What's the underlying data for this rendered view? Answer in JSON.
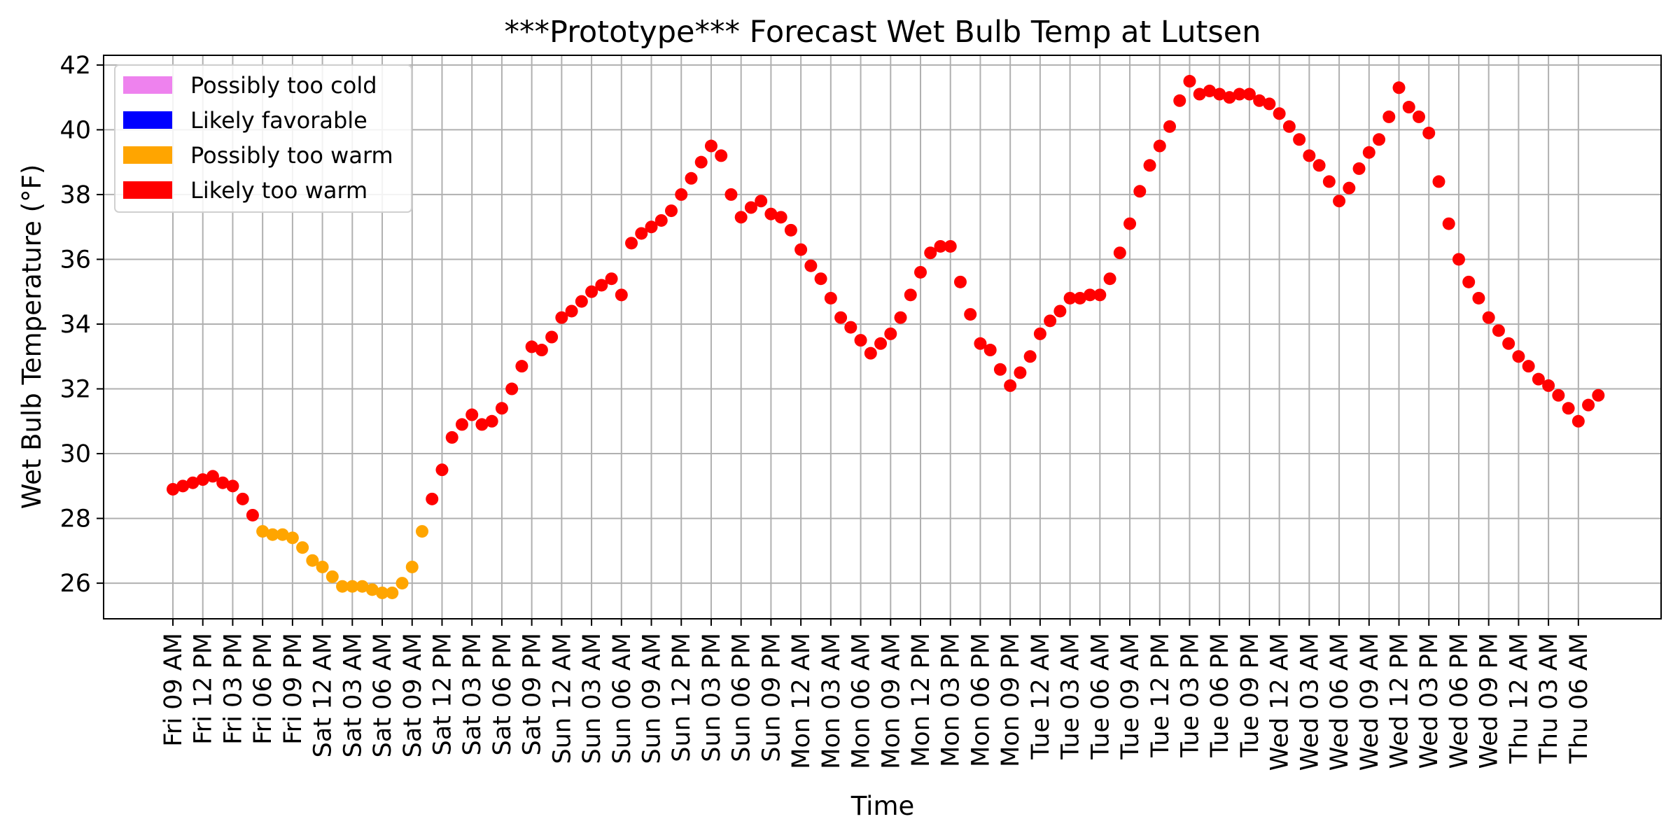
{
  "chart_data": {
    "type": "scatter",
    "title": "***Prototype*** Forecast Wet Bulb Temp at Lutsen",
    "xlabel": "Time",
    "ylabel": "Wet Bulb Temperature (°F)",
    "ylim": [
      24.9,
      42.3
    ],
    "yticks": [
      26,
      28,
      30,
      32,
      34,
      36,
      38,
      40,
      42
    ],
    "grid": true,
    "legend_position": "top-left",
    "x_ticks": [
      "Fri 09 AM",
      "Fri 12 PM",
      "Fri 03 PM",
      "Fri 06 PM",
      "Fri 09 PM",
      "Sat 12 AM",
      "Sat 03 AM",
      "Sat 06 AM",
      "Sat 09 AM",
      "Sat 12 PM",
      "Sat 03 PM",
      "Sat 06 PM",
      "Sat 09 PM",
      "Sun 12 AM",
      "Sun 03 AM",
      "Sun 06 AM",
      "Sun 09 AM",
      "Sun 12 PM",
      "Sun 03 PM",
      "Sun 06 PM",
      "Sun 09 PM",
      "Mon 12 AM",
      "Mon 03 AM",
      "Mon 06 AM",
      "Mon 09 AM",
      "Mon 12 PM",
      "Mon 03 PM",
      "Mon 06 PM",
      "Mon 09 PM",
      "Tue 12 AM",
      "Tue 03 AM",
      "Tue 06 AM",
      "Tue 09 AM",
      "Tue 12 PM",
      "Tue 03 PM",
      "Tue 06 PM",
      "Tue 09 PM",
      "Wed 12 AM",
      "Wed 03 AM",
      "Wed 06 AM",
      "Wed 09 AM",
      "Wed 12 PM",
      "Wed 03 PM",
      "Wed 06 PM",
      "Wed 09 PM",
      "Thu 12 AM",
      "Thu 03 AM",
      "Thu 06 AM"
    ],
    "legend": [
      {
        "label": "Possibly too cold",
        "color": "#ee82ee"
      },
      {
        "label": "Likely favorable",
        "color": "#0000ff"
      },
      {
        "label": "Possibly too warm",
        "color": "#ffa500"
      },
      {
        "label": "Likely too warm",
        "color": "#ff0000"
      }
    ],
    "series": [
      {
        "name": "Likely too warm",
        "color": "#ff0000",
        "points": [
          [
            "Fri 09 AM",
            28.9
          ],
          [
            "Fri 10 AM",
            29.0
          ],
          [
            "Fri 11 AM",
            29.1
          ],
          [
            "Fri 12 PM",
            29.2
          ],
          [
            "Fri 01 PM",
            29.3
          ],
          [
            "Fri 02 PM",
            29.1
          ],
          [
            "Fri 03 PM",
            29.0
          ],
          [
            "Fri 04 PM",
            28.6
          ],
          [
            "Fri 05 PM",
            28.1
          ],
          [
            "Sat 11 AM",
            28.6
          ],
          [
            "Sat 12 PM",
            29.5
          ],
          [
            "Sat 01 PM",
            30.5
          ],
          [
            "Sat 02 PM",
            30.9
          ],
          [
            "Sat 03 PM",
            31.2
          ],
          [
            "Sat 04 PM",
            30.9
          ],
          [
            "Sat 05 PM",
            31.0
          ],
          [
            "Sat 06 PM",
            31.4
          ],
          [
            "Sat 07 PM",
            32.0
          ],
          [
            "Sat 08 PM",
            32.7
          ],
          [
            "Sat 09 PM",
            33.3
          ],
          [
            "Sat 10 PM",
            33.2
          ],
          [
            "Sat 11 PM",
            33.6
          ],
          [
            "Sun 12 AM",
            34.2
          ],
          [
            "Sun 01 AM",
            34.4
          ],
          [
            "Sun 02 AM",
            34.7
          ],
          [
            "Sun 03 AM",
            35.0
          ],
          [
            "Sun 04 AM",
            35.2
          ],
          [
            "Sun 05 AM",
            35.4
          ],
          [
            "Sun 06 AM",
            34.9
          ],
          [
            "Sun 07 AM",
            36.5
          ],
          [
            "Sun 08 AM",
            36.8
          ],
          [
            "Sun 09 AM",
            37.0
          ],
          [
            "Sun 10 AM",
            37.2
          ],
          [
            "Sun 11 AM",
            37.5
          ],
          [
            "Sun 12 PM",
            38.0
          ],
          [
            "Sun 01 PM",
            38.5
          ],
          [
            "Sun 02 PM",
            39.0
          ],
          [
            "Sun 03 PM",
            39.5
          ],
          [
            "Sun 04 PM",
            39.2
          ],
          [
            "Sun 05 PM",
            38.0
          ],
          [
            "Sun 06 PM",
            37.3
          ],
          [
            "Sun 07 PM",
            37.6
          ],
          [
            "Sun 08 PM",
            37.8
          ],
          [
            "Sun 09 PM",
            37.4
          ],
          [
            "Sun 10 PM",
            37.3
          ],
          [
            "Sun 11 PM",
            36.9
          ],
          [
            "Mon 12 AM",
            36.3
          ],
          [
            "Mon 01 AM",
            35.8
          ],
          [
            "Mon 02 AM",
            35.4
          ],
          [
            "Mon 03 AM",
            34.8
          ],
          [
            "Mon 04 AM",
            34.2
          ],
          [
            "Mon 05 AM",
            33.9
          ],
          [
            "Mon 06 AM",
            33.5
          ],
          [
            "Mon 07 AM",
            33.1
          ],
          [
            "Mon 08 AM",
            33.4
          ],
          [
            "Mon 09 AM",
            33.7
          ],
          [
            "Mon 10 AM",
            34.2
          ],
          [
            "Mon 11 AM",
            34.9
          ],
          [
            "Mon 12 PM",
            35.6
          ],
          [
            "Mon 01 PM",
            36.2
          ],
          [
            "Mon 02 PM",
            36.4
          ],
          [
            "Mon 03 PM",
            36.4
          ],
          [
            "Mon 04 PM",
            35.3
          ],
          [
            "Mon 05 PM",
            34.3
          ],
          [
            "Mon 06 PM",
            33.4
          ],
          [
            "Mon 07 PM",
            33.2
          ],
          [
            "Mon 08 PM",
            32.6
          ],
          [
            "Mon 09 PM",
            32.1
          ],
          [
            "Mon 10 PM",
            32.5
          ],
          [
            "Mon 11 PM",
            33.0
          ],
          [
            "Tue 12 AM",
            33.7
          ],
          [
            "Tue 01 AM",
            34.1
          ],
          [
            "Tue 02 AM",
            34.4
          ],
          [
            "Tue 03 AM",
            34.8
          ],
          [
            "Tue 04 AM",
            34.8
          ],
          [
            "Tue 05 AM",
            34.9
          ],
          [
            "Tue 06 AM",
            34.9
          ],
          [
            "Tue 07 AM",
            35.4
          ],
          [
            "Tue 08 AM",
            36.2
          ],
          [
            "Tue 09 AM",
            37.1
          ],
          [
            "Tue 10 AM",
            38.1
          ],
          [
            "Tue 11 AM",
            38.9
          ],
          [
            "Tue 12 PM",
            39.5
          ],
          [
            "Tue 01 PM",
            40.1
          ],
          [
            "Tue 02 PM",
            40.9
          ],
          [
            "Tue 03 PM",
            41.5
          ],
          [
            "Tue 04 PM",
            41.1
          ],
          [
            "Tue 05 PM",
            41.2
          ],
          [
            "Tue 06 PM",
            41.1
          ],
          [
            "Tue 07 PM",
            41.0
          ],
          [
            "Tue 08 PM",
            41.1
          ],
          [
            "Tue 09 PM",
            41.1
          ],
          [
            "Tue 10 PM",
            40.9
          ],
          [
            "Tue 11 PM",
            40.8
          ],
          [
            "Wed 12 AM",
            40.5
          ],
          [
            "Wed 01 AM",
            40.1
          ],
          [
            "Wed 02 AM",
            39.7
          ],
          [
            "Wed 03 AM",
            39.2
          ],
          [
            "Wed 04 AM",
            38.9
          ],
          [
            "Wed 05 AM",
            38.4
          ],
          [
            "Wed 06 AM",
            37.8
          ],
          [
            "Wed 07 AM",
            38.2
          ],
          [
            "Wed 08 AM",
            38.8
          ],
          [
            "Wed 09 AM",
            39.3
          ],
          [
            "Wed 10 AM",
            39.7
          ],
          [
            "Wed 11 AM",
            40.4
          ],
          [
            "Wed 12 PM",
            41.3
          ],
          [
            "Wed 01 PM",
            40.7
          ],
          [
            "Wed 02 PM",
            40.4
          ],
          [
            "Wed 03 PM",
            39.9
          ],
          [
            "Wed 04 PM",
            38.4
          ],
          [
            "Wed 05 PM",
            37.1
          ],
          [
            "Wed 06 PM",
            36.0
          ],
          [
            "Wed 07 PM",
            35.3
          ],
          [
            "Wed 08 PM",
            34.8
          ],
          [
            "Wed 09 PM",
            34.2
          ],
          [
            "Wed 10 PM",
            33.8
          ],
          [
            "Wed 11 PM",
            33.4
          ],
          [
            "Thu 12 AM",
            33.0
          ],
          [
            "Thu 01 AM",
            32.7
          ],
          [
            "Thu 02 AM",
            32.3
          ],
          [
            "Thu 03 AM",
            32.1
          ],
          [
            "Thu 04 AM",
            31.8
          ],
          [
            "Thu 05 AM",
            31.4
          ],
          [
            "Thu 06 AM",
            31.0
          ],
          [
            "Thu 07 AM",
            31.5
          ],
          [
            "Thu 08 AM",
            31.8
          ]
        ]
      },
      {
        "name": "Possibly too warm",
        "color": "#ffa500",
        "points": [
          [
            "Fri 06 PM",
            27.6
          ],
          [
            "Fri 07 PM",
            27.5
          ],
          [
            "Fri 08 PM",
            27.5
          ],
          [
            "Fri 09 PM",
            27.4
          ],
          [
            "Fri 10 PM",
            27.1
          ],
          [
            "Fri 11 PM",
            26.7
          ],
          [
            "Sat 12 AM",
            26.5
          ],
          [
            "Sat 01 AM",
            26.2
          ],
          [
            "Sat 02 AM",
            25.9
          ],
          [
            "Sat 03 AM",
            25.9
          ],
          [
            "Sat 04 AM",
            25.9
          ],
          [
            "Sat 05 AM",
            25.8
          ],
          [
            "Sat 06 AM",
            25.7
          ],
          [
            "Sat 07 AM",
            25.7
          ],
          [
            "Sat 08 AM",
            26.0
          ],
          [
            "Sat 09 AM",
            26.5
          ],
          [
            "Sat 10 AM",
            27.6
          ]
        ]
      }
    ]
  }
}
